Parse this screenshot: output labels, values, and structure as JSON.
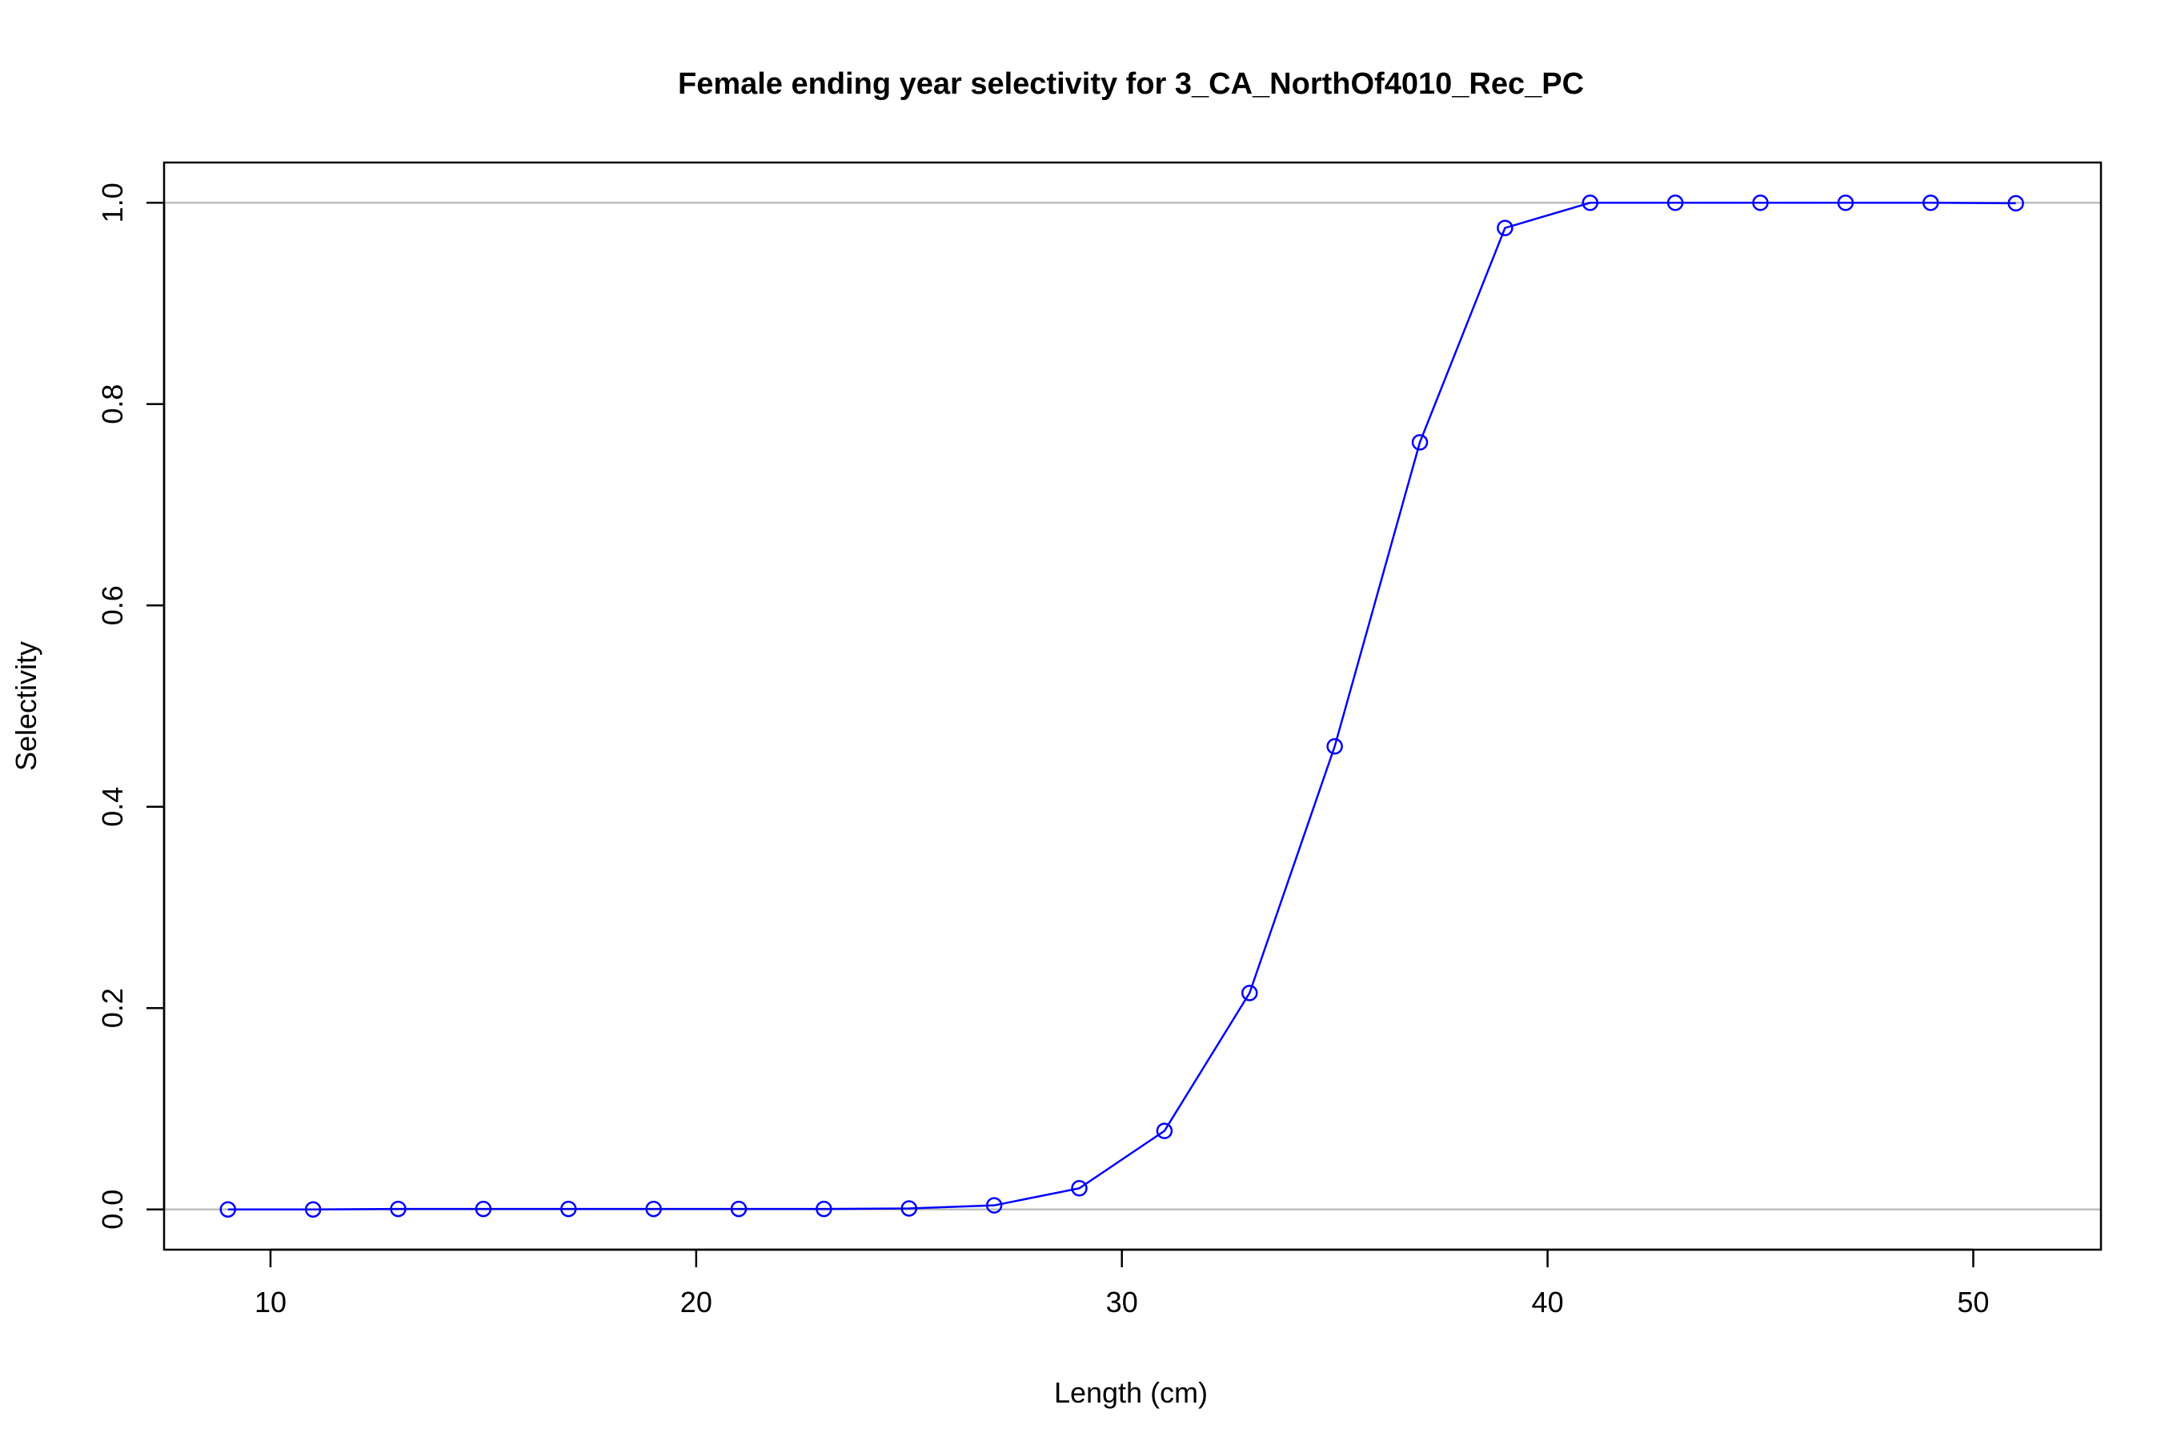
{
  "chart_data": {
    "type": "line",
    "title": "Female ending year selectivity for 3_CA_NorthOf4010_Rec_PC",
    "xlabel": "Length (cm)",
    "ylabel": "Selectivity",
    "xlim": [
      7.5,
      53
    ],
    "ylim": [
      -0.04,
      1.04
    ],
    "xticks": [
      10,
      20,
      30,
      40,
      50
    ],
    "yticks": [
      0.0,
      0.2,
      0.4,
      0.6,
      0.8,
      1.0
    ],
    "xtick_labels": [
      "10",
      "20",
      "30",
      "40",
      "50"
    ],
    "ytick_labels": [
      "0.0",
      "0.2",
      "0.4",
      "0.6",
      "0.8",
      "1.0"
    ],
    "reference_lines": [
      0,
      1
    ],
    "grid": false,
    "series": [
      {
        "color": "#0000ff",
        "marker": "open-circle",
        "x": [
          9,
          11,
          13,
          15,
          17,
          19,
          21,
          23,
          25,
          27,
          29,
          31,
          33,
          35,
          37,
          39,
          41,
          43,
          45,
          47,
          49,
          51
        ],
        "y": [
          0.0,
          0.0,
          0.0005,
          0.0005,
          0.0005,
          0.0005,
          0.0005,
          0.0005,
          0.001,
          0.004,
          0.021,
          0.078,
          0.215,
          0.46,
          0.762,
          0.975,
          1.0,
          1.0,
          1.0,
          1.0,
          1.0,
          0.9995
        ]
      }
    ],
    "colors": {
      "series": "#0000ff",
      "reference_line": "#bebebe",
      "axis": "#000000"
    }
  }
}
